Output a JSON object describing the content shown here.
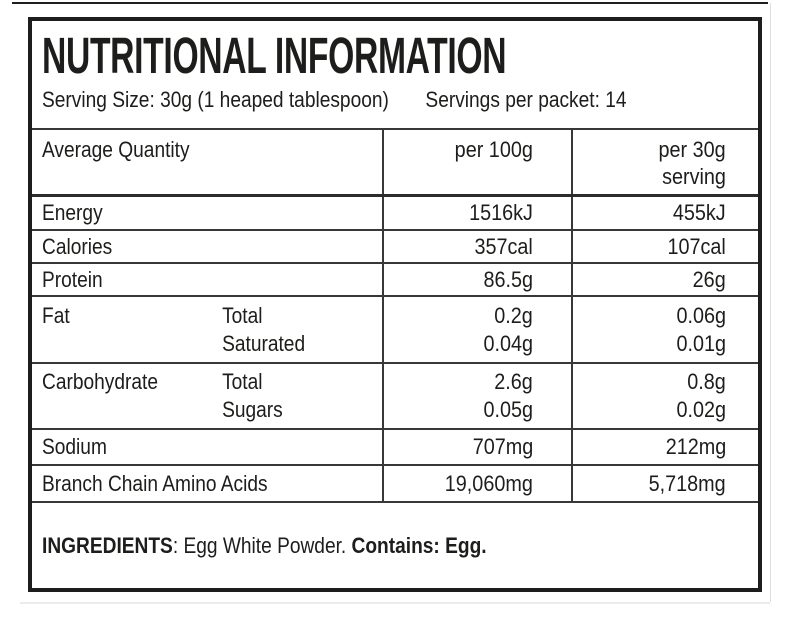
{
  "colors": {
    "text": "#1d1d1b",
    "outer_border": "#1d1d1b",
    "grid_line": "#383838",
    "sheet_edge": "#dededb"
  },
  "label": {
    "title": "NUTRITIONAL INFORMATION",
    "serving_size": "Serving Size: 30g (1 heaped tablespoon)",
    "servings_per_packet": "Servings per packet: 14",
    "table": {
      "header": {
        "quantity": "Average Quantity",
        "per100": "per 100g",
        "per30_line1": "per 30g",
        "per30_line2": "serving"
      },
      "rows": [
        {
          "name": "Energy",
          "per100": [
            "1516kJ"
          ],
          "per30": [
            "455kJ"
          ]
        },
        {
          "name": "Calories",
          "per100": [
            "357cal"
          ],
          "per30": [
            "107cal"
          ]
        },
        {
          "name": "Protein",
          "per100": [
            "86.5g"
          ],
          "per30": [
            "26g"
          ]
        },
        {
          "name": "Fat",
          "subs": [
            "Total",
            "Saturated"
          ],
          "per100": [
            "0.2g",
            "0.04g"
          ],
          "per30": [
            "0.06g",
            "0.01g"
          ]
        },
        {
          "name": "Carbohydrate",
          "subs": [
            "Total",
            "Sugars"
          ],
          "per100": [
            "2.6g",
            "0.05g"
          ],
          "per30": [
            "0.8g",
            "0.02g"
          ]
        },
        {
          "name": "Sodium",
          "per100": [
            "707mg"
          ],
          "per30": [
            "212mg"
          ]
        },
        {
          "name": "Branch Chain Amino Acids",
          "per100": [
            "19,060mg"
          ],
          "per30": [
            "5,718mg"
          ]
        }
      ]
    },
    "ingredients": {
      "label": "INGREDIENTS",
      "text": ": Egg White Powder. ",
      "contains": "Contains: Egg."
    }
  }
}
